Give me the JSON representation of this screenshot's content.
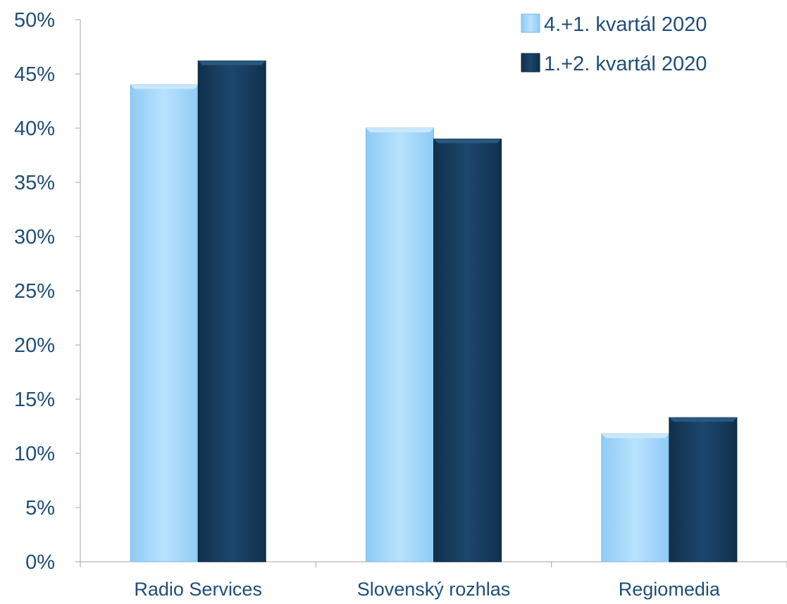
{
  "chart_data": {
    "type": "bar",
    "categories": [
      "Radio Services",
      "Slovenský rozhlas",
      "Regiomedia"
    ],
    "series": [
      {
        "name": "4.+1. kvartál 2020",
        "values": [
          44,
          40,
          11.8
        ],
        "color": "#9fd4fa"
      },
      {
        "name": "1.+2. kvartál 2020",
        "values": [
          46.2,
          39,
          13.3
        ],
        "color": "#163d5e"
      }
    ],
    "yticks": [
      "0%",
      "5%",
      "10%",
      "15%",
      "20%",
      "25%",
      "30%",
      "35%",
      "40%",
      "45%",
      "50%"
    ],
    "ylim": [
      0,
      50
    ],
    "y_unit": "%",
    "legend_position": "top-right",
    "grid": false,
    "axis_color": "#a6a6a6",
    "text_color": "#1f4e79"
  }
}
